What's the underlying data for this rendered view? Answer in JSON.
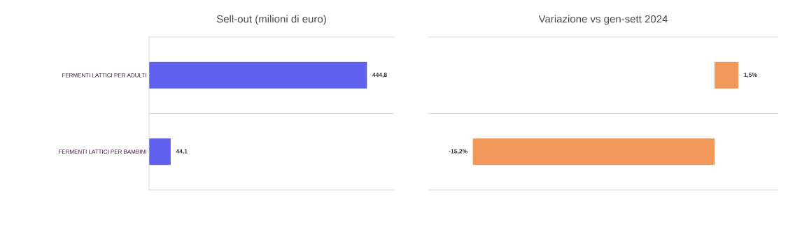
{
  "chart_data": [
    {
      "type": "bar",
      "orientation": "horizontal",
      "title": "Sell-out (milioni di euro)",
      "categories": [
        "FERMENTI LATTICI PER ADULTI",
        "FERMENTI LATTICI PER BAMBINI"
      ],
      "values": [
        444.8,
        44.1
      ],
      "value_labels": [
        "444,8",
        "44,1"
      ],
      "color": "#6060f0",
      "xlim": [
        0,
        500
      ],
      "grid": "y",
      "tick_labels": "y"
    },
    {
      "type": "bar",
      "orientation": "horizontal",
      "title": "Variazione  vs gen-sett 2024",
      "categories": [
        null,
        null
      ],
      "values": [
        1.5,
        -15.2
      ],
      "value_labels": [
        "1,5%",
        "-15,2%"
      ],
      "color": "#f2995a",
      "xlim": [
        -18,
        4
      ],
      "grid": "y",
      "tick_labels": false
    }
  ]
}
